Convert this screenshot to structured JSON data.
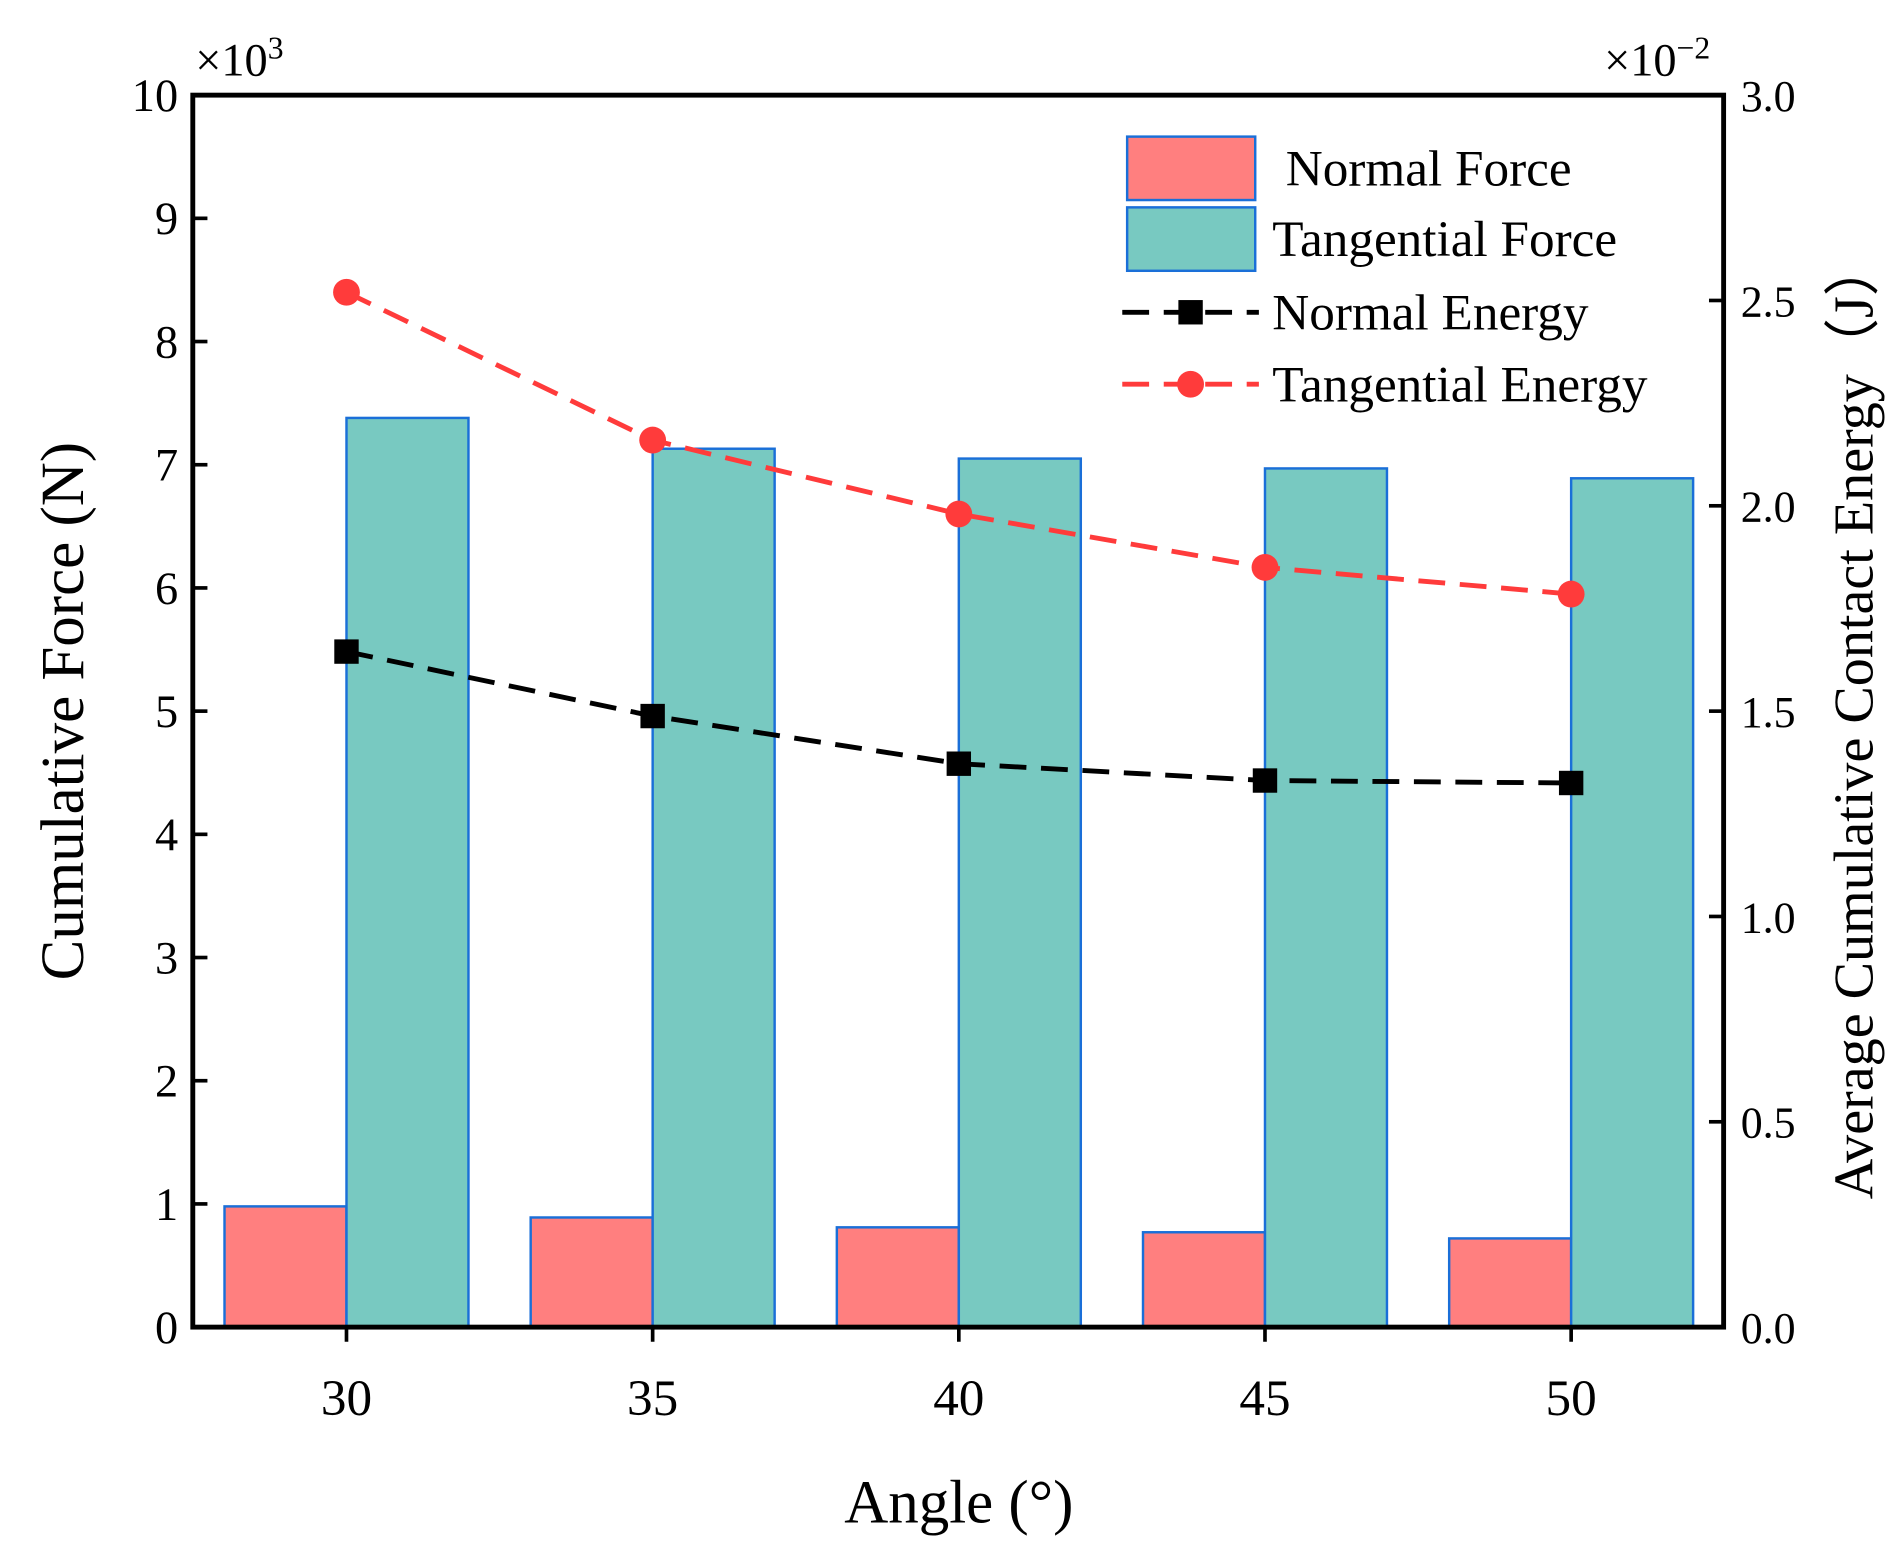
{
  "chart_data": {
    "type": "bar",
    "title": "",
    "xlabel": "Angle (°)",
    "ylabel": "Cumulative Force (N)",
    "y2label": "Average Cumulative Contact Energy（J）",
    "y_multiplier": "×10",
    "y_multiplier_exp": "3",
    "y2_multiplier": "×10",
    "y2_multiplier_exp": "−2",
    "categories": [
      "30",
      "35",
      "40",
      "45",
      "50"
    ],
    "x_values": [
      30,
      35,
      40,
      45,
      50
    ],
    "ylim": [
      0,
      10
    ],
    "y2lim": [
      0,
      3.0
    ],
    "yticks": [
      "0",
      "1",
      "2",
      "3",
      "4",
      "5",
      "6",
      "7",
      "8",
      "9",
      "10"
    ],
    "y2ticks": [
      "0.0",
      "0.5",
      "1.0",
      "1.5",
      "2.0",
      "2.5",
      "3.0"
    ],
    "legend_position": "top-right",
    "series": [
      {
        "name": "Normal Force",
        "kind": "bar",
        "axis": "left",
        "color": "#FF7F7F",
        "edge": "#1A6FD8",
        "values": [
          0.98,
          0.89,
          0.81,
          0.77,
          0.72
        ]
      },
      {
        "name": "Tangential Force",
        "kind": "bar",
        "axis": "left",
        "color": "#78C9C1",
        "edge": "#1A6FD8",
        "values": [
          7.38,
          7.13,
          7.05,
          6.97,
          6.89
        ]
      },
      {
        "name": "Normal Energy",
        "kind": "line",
        "marker": "square",
        "axis": "right",
        "color": "#000000",
        "values": [
          1.645,
          1.488,
          1.372,
          1.331,
          1.325
        ]
      },
      {
        "name": "Tangential Energy",
        "kind": "line",
        "marker": "circle",
        "axis": "right",
        "color": "#FF3B3B",
        "values": [
          2.52,
          2.16,
          1.98,
          1.85,
          1.785
        ]
      }
    ]
  }
}
